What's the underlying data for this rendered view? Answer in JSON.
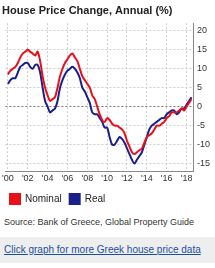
{
  "chart_data": {
    "type": "line",
    "title": "House Price Change, Annual (%)",
    "annotations": [
      "Source: Bank of Greece, Global Property Guide",
      "Click graph for more Greek house price data"
    ],
    "x": [
      2000,
      2000.25,
      2000.5,
      2000.75,
      2001,
      2001.25,
      2001.5,
      2001.75,
      2002,
      2002.25,
      2002.5,
      2002.75,
      2003,
      2003.25,
      2003.5,
      2003.75,
      2004,
      2004.25,
      2004.5,
      2004.75,
      2005,
      2005.25,
      2005.5,
      2005.75,
      2006,
      2006.25,
      2006.5,
      2006.75,
      2007,
      2007.25,
      2007.5,
      2007.75,
      2008,
      2008.25,
      2008.5,
      2008.75,
      2009,
      2009.25,
      2009.5,
      2009.75,
      2010,
      2010.25,
      2010.5,
      2010.75,
      2011,
      2011.25,
      2011.5,
      2011.75,
      2012,
      2012.25,
      2012.5,
      2012.75,
      2013,
      2013.25,
      2013.5,
      2013.75,
      2014,
      2014.25,
      2014.5,
      2014.75,
      2015,
      2015.25,
      2015.5,
      2015.75,
      2016,
      2016.25,
      2016.5,
      2016.75,
      2017,
      2017.25,
      2017.5,
      2017.75,
      2018,
      2018.25,
      2018.5
    ],
    "series": [
      {
        "name": "Nominal",
        "color": "#e8111a",
        "marker": "none",
        "line_style": "solid",
        "values": [
          8.5,
          9.5,
          10,
          10.5,
          11.5,
          13,
          14,
          14.5,
          15,
          14.5,
          14,
          13.5,
          14.5,
          12,
          8,
          5,
          3,
          1.5,
          2,
          2.5,
          5,
          8,
          10,
          11.5,
          12.5,
          13.5,
          14,
          13,
          12,
          10,
          8,
          7,
          6,
          5,
          3,
          2,
          0,
          -2,
          -3.5,
          -4,
          -3,
          -3.5,
          -4.5,
          -5,
          -5,
          -5.5,
          -6,
          -7,
          -9,
          -10.5,
          -12,
          -12.5,
          -12,
          -11.5,
          -11,
          -9.5,
          -8,
          -7.5,
          -7,
          -6,
          -5,
          -5,
          -4.5,
          -4,
          -3,
          -2.5,
          -1.5,
          -1.5,
          -1.5,
          -1,
          -0.5,
          -1,
          0,
          1,
          2
        ]
      },
      {
        "name": "Real",
        "color": "#1a1f8c",
        "marker": "none",
        "line_style": "solid",
        "values": [
          6,
          7,
          7.5,
          7.5,
          9,
          10.5,
          11,
          11.5,
          11.5,
          10.5,
          10,
          11,
          11,
          9,
          5,
          1.5,
          0,
          -1.5,
          -1,
          -0.5,
          1.5,
          5,
          7,
          8.5,
          9.5,
          10,
          10.5,
          10,
          9,
          7.5,
          5,
          4,
          2.5,
          1,
          -1.5,
          -2,
          -2,
          -3,
          -4,
          -5.5,
          -5.5,
          -8,
          -10,
          -10,
          -9,
          -8,
          -8.5,
          -9.5,
          -11,
          -12.5,
          -14,
          -15,
          -14,
          -13,
          -12,
          -10,
          -8,
          -6,
          -5,
          -4.5,
          -4,
          -3.5,
          -3,
          -3,
          -2,
          -1.5,
          -1,
          -1,
          -2,
          -1.5,
          -0.5,
          -0.5,
          0.5,
          1.5,
          2.5
        ]
      }
    ],
    "xlim": [
      1999.75,
      2018.75
    ],
    "xticks": [
      {
        "value": 2000,
        "label": "'00"
      },
      {
        "value": 2002,
        "label": "'02"
      },
      {
        "value": 2004,
        "label": "'04"
      },
      {
        "value": 2006,
        "label": "'06"
      },
      {
        "value": 2008,
        "label": "'08"
      },
      {
        "value": 2010,
        "label": "'10"
      },
      {
        "value": 2012,
        "label": "'12"
      },
      {
        "value": 2014,
        "label": "'14"
      },
      {
        "value": 2016,
        "label": "'16"
      },
      {
        "value": 2018,
        "label": "'18"
      }
    ],
    "ylim": [
      -17,
      22
    ],
    "yticks": [
      -15,
      -10,
      -5,
      0,
      5,
      10,
      15,
      20
    ],
    "grid": true,
    "legend": "bottom-left"
  }
}
